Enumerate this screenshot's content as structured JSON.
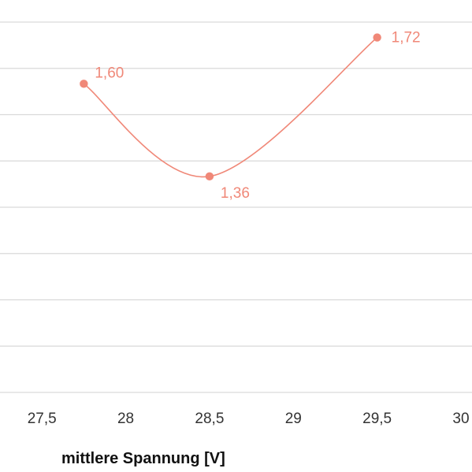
{
  "chart_data": {
    "type": "line",
    "xlabel": "mittlere Spannung [V]",
    "ylabel": "",
    "x_ticks": [
      "27,5",
      "28",
      "28,5",
      "29",
      "29,5",
      "30"
    ],
    "xlim": [
      27.25,
      30
    ],
    "ylim": [
      0.8,
      1.76
    ],
    "grid": true,
    "smooth": true,
    "series": [
      {
        "color": "#f08878",
        "points": [
          {
            "x": 27.75,
            "y": 1.6,
            "label": "1,60",
            "label_pos": "upper-right"
          },
          {
            "x": 28.5,
            "y": 1.36,
            "label": "1,36",
            "label_pos": "lower-right"
          },
          {
            "x": 29.5,
            "y": 1.72,
            "label": "1,72",
            "label_pos": "right"
          }
        ]
      }
    ]
  }
}
